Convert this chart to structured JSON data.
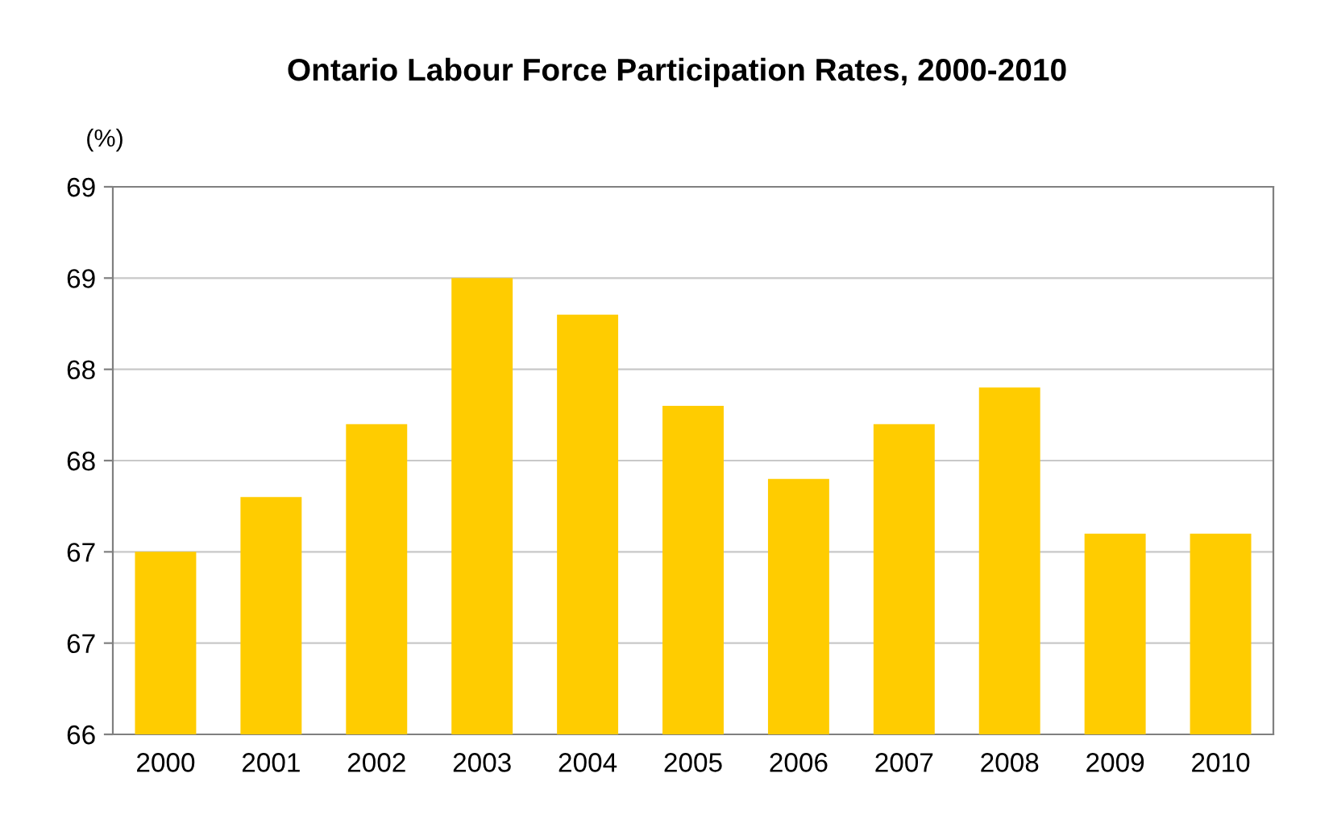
{
  "chart_data": {
    "type": "bar",
    "title": "Ontario Labour Force Participation Rates, 2000-2010",
    "ylabel": "(%)",
    "categories": [
      "2000",
      "2001",
      "2002",
      "2003",
      "2004",
      "2005",
      "2006",
      "2007",
      "2008",
      "2009",
      "2010"
    ],
    "values": [
      67.0,
      67.3,
      67.7,
      68.5,
      68.3,
      67.8,
      67.4,
      67.7,
      67.9,
      67.1,
      67.1
    ],
    "color": "#ffcc00",
    "ylim": [
      66,
      69
    ],
    "yticks": [
      66,
      {
        "value": 66.5,
        "label": "67"
      },
      67,
      {
        "value": 67.5,
        "label": "68"
      },
      68,
      {
        "value": 68.5,
        "label": "69"
      },
      69
    ],
    "grid": "y",
    "legend": false
  }
}
